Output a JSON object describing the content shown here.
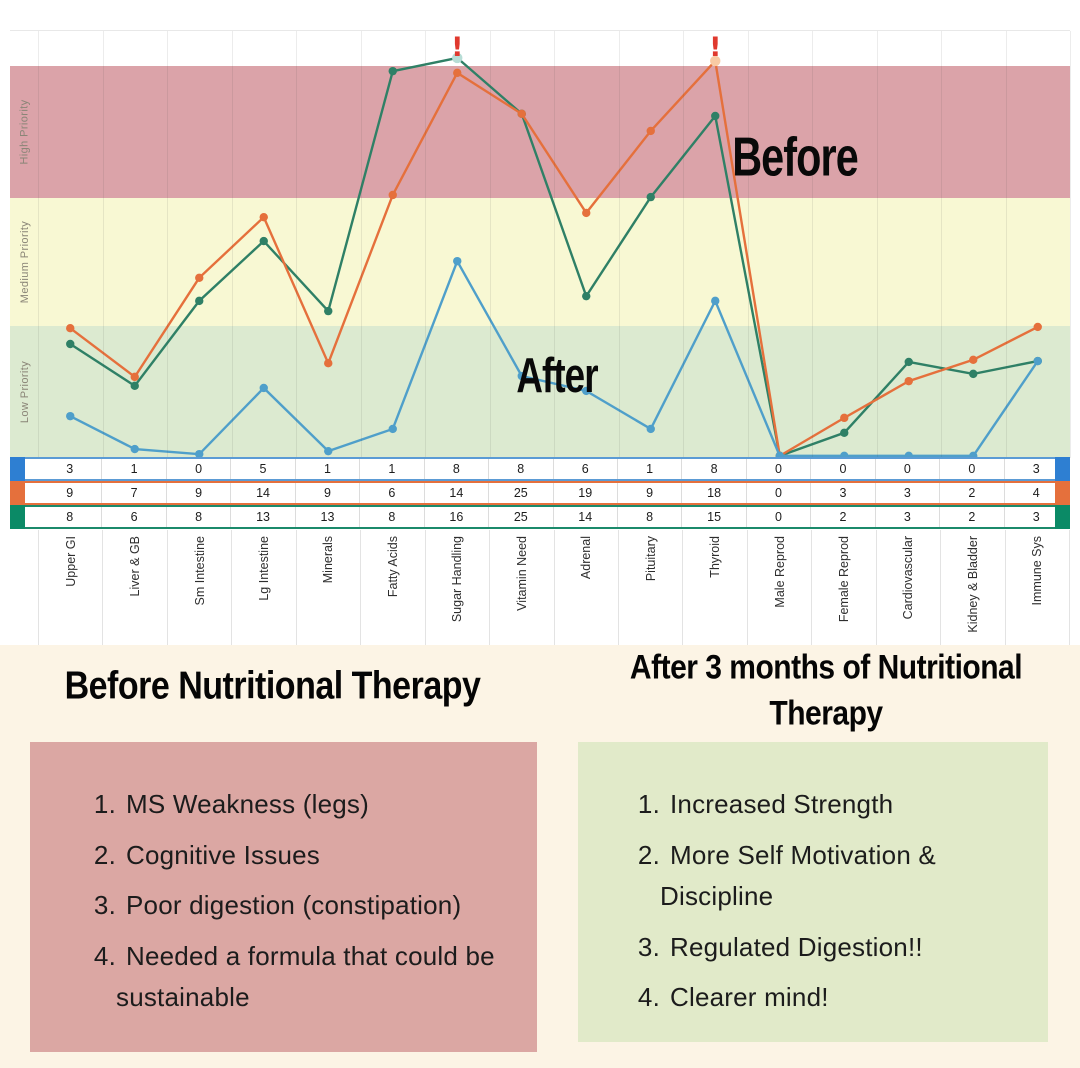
{
  "chart_data": {
    "type": "line",
    "categories": [
      "Upper GI",
      "Liver & GB",
      "Sm Intestine",
      "Lg Intestine",
      "Minerals",
      "Fatty Acids",
      "Sugar Handling",
      "Vitamin Need",
      "Adrenal",
      "Pituitary",
      "Thyroid",
      "Male Reprod",
      "Female Reprod",
      "Cardiovascular",
      "Kidney & Bladder",
      "Immune Sys"
    ],
    "priority_bands": [
      {
        "label": "High Priority",
        "color": "#dba3a9",
        "top_pct": 8.2,
        "height_pct": 30.9
      },
      {
        "label": "Medium Priority",
        "color": "#f8f8d3",
        "top_pct": 39.1,
        "height_pct": 30.0
      },
      {
        "label": "Low Priority",
        "color": "#dcead0",
        "top_pct": 69.1,
        "height_pct": 30.9
      }
    ],
    "series": [
      {
        "id": "row-blue",
        "color": "#4f9fca",
        "tab_color": "#2e7fd2",
        "border_color": "#5b9bd5",
        "values": [
          3,
          1,
          0,
          5,
          1,
          1,
          8,
          8,
          6,
          1,
          8,
          0,
          0,
          0,
          0,
          3
        ],
        "y_pct": [
          90.2,
          97.9,
          99.1,
          83.6,
          98.4,
          93.2,
          53.9,
          80.8,
          84.3,
          93.2,
          63.2,
          99.5,
          99.5,
          99.5,
          99.5,
          77.3
        ]
      },
      {
        "id": "row-orange",
        "color": "#e5703c",
        "tab_color": "#e5703c",
        "border_color": "#e5703c",
        "values": [
          9,
          7,
          9,
          14,
          9,
          6,
          14,
          25,
          19,
          9,
          18,
          0,
          3,
          3,
          2,
          4
        ],
        "y_pct": [
          69.6,
          81.0,
          57.8,
          43.6,
          77.8,
          38.4,
          9.8,
          19.4,
          42.6,
          23.4,
          7.0,
          99.5,
          90.6,
          82.0,
          77.0,
          69.3
        ]
      },
      {
        "id": "row-green",
        "color": "#2f8066",
        "tab_color": "#0b8a66",
        "border_color": "#1b8a6b",
        "values": [
          8,
          6,
          8,
          13,
          13,
          8,
          16,
          25,
          14,
          8,
          15,
          0,
          2,
          3,
          2,
          3
        ],
        "y_pct": [
          73.3,
          83.1,
          63.2,
          49.2,
          65.6,
          9.4,
          6.3,
          19.4,
          62.1,
          38.9,
          19.9,
          99.5,
          94.1,
          77.5,
          80.3,
          77.3
        ]
      }
    ],
    "annotations": [
      {
        "text": "!",
        "column_index": 6
      },
      {
        "text": "!",
        "column_index": 10
      }
    ],
    "peak_highlights": [
      {
        "column_index": 6,
        "y_pct": 6.3,
        "color": "#b7ddd6"
      },
      {
        "column_index": 10,
        "y_pct": 7.0,
        "color": "#f8cba4"
      }
    ],
    "overlay_labels": [
      {
        "id": "before",
        "text": "Before",
        "x_pct": 73.4,
        "y_pct": 29.5
      },
      {
        "id": "after",
        "text": "After",
        "x_pct": 50.3,
        "y_pct": 81.0
      }
    ]
  },
  "summary": {
    "before_heading": "Before Nutritional Therapy",
    "after_heading": "After 3 months of Nutritional Therapy",
    "before_items": [
      "MS Weakness (legs)",
      "Cognitive Issues",
      "Poor digestion (constipation)",
      "Needed a formula that could be sustainable"
    ],
    "after_items": [
      "Increased Strength",
      "More Self Motivation & Discipline",
      "Regulated Digestion!!",
      "Clearer mind!"
    ]
  },
  "colors": {
    "page_bg": "#fcf4e5",
    "chart_bg": "#ffffff",
    "before_box": "#dba7a3",
    "after_box": "#e1eac9",
    "annotation_red": "#e0392e",
    "grid": "rgba(70,70,70,0.10)"
  }
}
